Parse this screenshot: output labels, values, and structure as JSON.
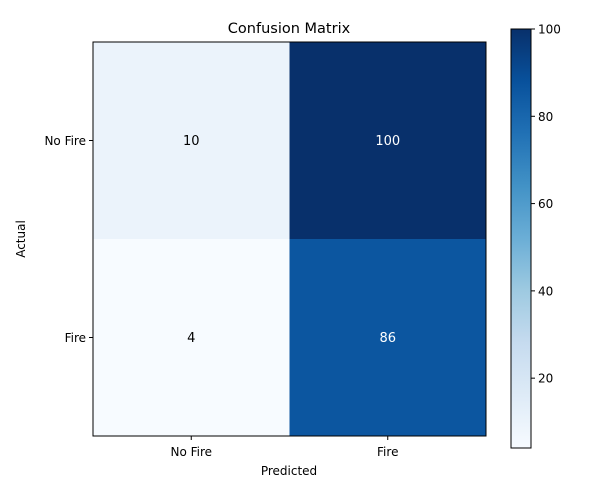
{
  "chart_data": {
    "type": "heatmap",
    "title": "Confusion Matrix",
    "xlabel": "Predicted",
    "ylabel": "Actual",
    "x_categories": [
      "No Fire",
      "Fire"
    ],
    "y_categories": [
      "No Fire",
      "Fire"
    ],
    "values": [
      [
        10,
        100
      ],
      [
        4,
        86
      ]
    ],
    "colormap": "Blues",
    "colorbar": {
      "vmin": 4,
      "vmax": 100,
      "ticks": [
        20,
        40,
        60,
        80,
        100
      ],
      "tick_labels": [
        "20",
        "40",
        "60",
        "80",
        "100"
      ]
    },
    "cell_text_colors": {
      "light": "#000000",
      "dark": "#ffffff"
    }
  }
}
